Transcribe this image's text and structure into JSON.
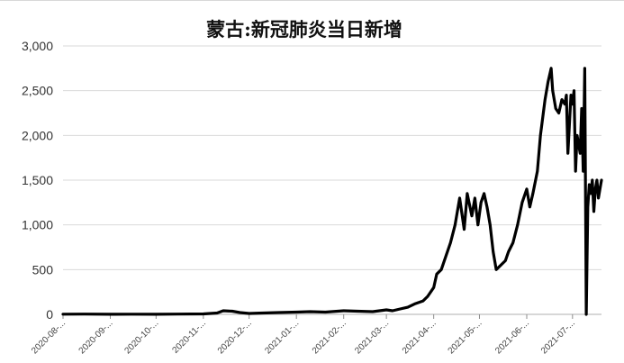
{
  "chart_data": {
    "type": "line",
    "title": "蒙古:新冠肺炎当日新增",
    "xlabel": "",
    "ylabel": "",
    "ylim": [
      0,
      3000
    ],
    "yticks": [
      "0",
      "500",
      "1,000",
      "1,500",
      "2,000",
      "2,500",
      "3,000"
    ],
    "ytick_values": [
      0,
      500,
      1000,
      1500,
      2000,
      2500,
      3000
    ],
    "xticks": [
      "2020-08-...",
      "2020-09-...",
      "2020-10-...",
      "2020-11-...",
      "2020-12-...",
      "2021-01-...",
      "2021-02-...",
      "2021-03-...",
      "2021-04-...",
      "2021-05-...",
      "2021-06-...",
      "2021-07-..."
    ],
    "x_start": "2020-08-01",
    "x_end": "2021-07-20",
    "grid": "horizontal",
    "line_color": "#000000",
    "series": [
      {
        "x": [
          "2020-08-01",
          "2020-08-15",
          "2020-09-01",
          "2020-09-15",
          "2020-10-01",
          "2020-10-15",
          "2020-11-01",
          "2020-11-10",
          "2020-11-14",
          "2020-11-20",
          "2020-11-25",
          "2020-12-01",
          "2020-12-10",
          "2020-12-20",
          "2021-01-01",
          "2021-01-10",
          "2021-01-20",
          "2021-02-01",
          "2021-02-10",
          "2021-02-20",
          "2021-03-01",
          "2021-03-05",
          "2021-03-10",
          "2021-03-15",
          "2021-03-20",
          "2021-03-25",
          "2021-03-28",
          "2021-04-01",
          "2021-04-03",
          "2021-04-06",
          "2021-04-09",
          "2021-04-12",
          "2021-04-15",
          "2021-04-18",
          "2021-04-21",
          "2021-04-23",
          "2021-04-26",
          "2021-04-28",
          "2021-04-30",
          "2021-05-02",
          "2021-05-04",
          "2021-05-06",
          "2021-05-08",
          "2021-05-10",
          "2021-05-12",
          "2021-05-15",
          "2021-05-18",
          "2021-05-20",
          "2021-05-23",
          "2021-05-26",
          "2021-05-29",
          "2021-06-01",
          "2021-06-03",
          "2021-06-05",
          "2021-06-08",
          "2021-06-10",
          "2021-06-13",
          "2021-06-15",
          "2021-06-17",
          "2021-06-18",
          "2021-06-20",
          "2021-06-22",
          "2021-06-24",
          "2021-06-26",
          "2021-06-27",
          "2021-06-28",
          "2021-06-30",
          "2021-07-01",
          "2021-07-02",
          "2021-07-03",
          "2021-07-04",
          "2021-07-06",
          "2021-07-07",
          "2021-07-08",
          "2021-07-09",
          "2021-07-10",
          "2021-07-11",
          "2021-07-12",
          "2021-07-13",
          "2021-07-14",
          "2021-07-15",
          "2021-07-16",
          "2021-07-17",
          "2021-07-18",
          "2021-07-19",
          "2021-07-20"
        ],
        "values": [
          2,
          3,
          1,
          2,
          1,
          3,
          5,
          15,
          40,
          35,
          20,
          10,
          15,
          20,
          25,
          30,
          25,
          40,
          35,
          30,
          50,
          40,
          60,
          80,
          120,
          150,
          200,
          300,
          450,
          500,
          650,
          800,
          1000,
          1300,
          950,
          1350,
          1100,
          1300,
          1000,
          1250,
          1350,
          1200,
          1000,
          700,
          500,
          550,
          600,
          700,
          800,
          1000,
          1250,
          1400,
          1200,
          1350,
          1600,
          2000,
          2400,
          2600,
          2750,
          2500,
          2300,
          2250,
          2400,
          2350,
          2450,
          1800,
          2450,
          2350,
          2500,
          1600,
          2000,
          1800,
          2300,
          1600,
          2750,
          0,
          1200,
          1450,
          1350,
          1500,
          1150,
          1400,
          1500,
          1300,
          1400,
          1500
        ]
      }
    ]
  }
}
